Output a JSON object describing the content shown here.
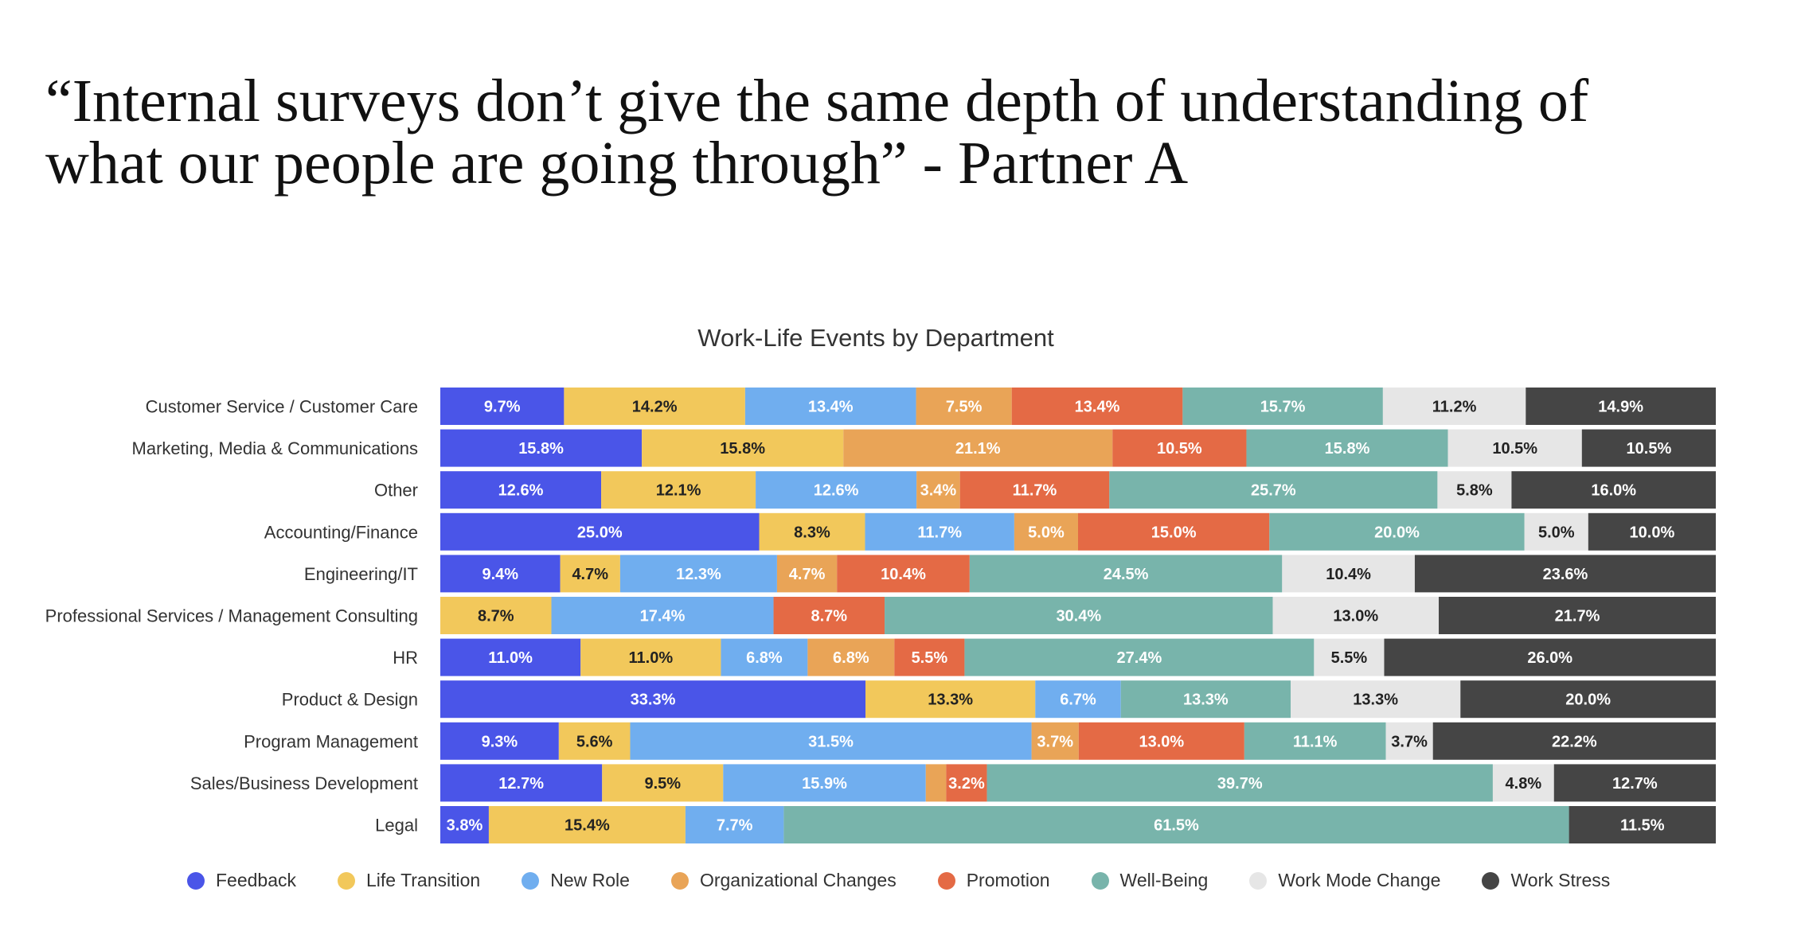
{
  "quote": {
    "line1": "“Internal surveys don’t give the same depth of understanding of",
    "line2": "what our people are going through” - Partner A"
  },
  "chart_data": {
    "type": "bar",
    "orientation": "horizontal",
    "stacked": true,
    "normalized": true,
    "title": "Work-Life Events by Department",
    "categories": [
      "Customer Service / Customer Care",
      "Marketing, Media & Communications",
      "Other",
      "Accounting/Finance",
      "Engineering/IT",
      "Professional Services / Management Consulting",
      "HR",
      "Product & Design",
      "Program Management",
      "Sales/Business Development",
      "Legal"
    ],
    "series": [
      {
        "name": "Feedback",
        "color": "#4a55e8",
        "values": [
          9.7,
          15.8,
          12.6,
          25.0,
          9.4,
          0,
          11.0,
          33.3,
          9.3,
          12.7,
          3.8
        ]
      },
      {
        "name": "Life Transition",
        "color": "#f2c85b",
        "values": [
          14.2,
          15.8,
          12.1,
          8.3,
          4.7,
          8.7,
          11.0,
          13.3,
          5.6,
          9.5,
          15.4
        ]
      },
      {
        "name": "New Role",
        "color": "#70aeef",
        "values": [
          13.4,
          0,
          12.6,
          11.7,
          12.3,
          17.4,
          6.8,
          6.7,
          31.5,
          15.9,
          7.7
        ]
      },
      {
        "name": "Organizational Changes",
        "color": "#e9a457",
        "values": [
          7.5,
          21.1,
          3.4,
          5.0,
          4.7,
          0,
          6.8,
          0,
          3.7,
          1.6,
          0
        ]
      },
      {
        "name": "Promotion",
        "color": "#e46a45",
        "values": [
          13.4,
          10.5,
          11.7,
          15.0,
          10.4,
          8.7,
          5.5,
          0,
          13.0,
          3.2,
          0
        ]
      },
      {
        "name": "Well-Being",
        "color": "#78b4ab",
        "values": [
          15.7,
          15.8,
          25.7,
          20.0,
          24.5,
          30.4,
          27.4,
          13.3,
          11.1,
          39.7,
          61.5
        ]
      },
      {
        "name": "Work Mode Change",
        "color": "#e6e6e6",
        "values": [
          11.2,
          10.5,
          5.8,
          5.0,
          10.4,
          13.0,
          5.5,
          13.3,
          3.7,
          4.8,
          0
        ]
      },
      {
        "name": "Work Stress",
        "color": "#454545",
        "values": [
          14.9,
          10.5,
          16.0,
          10.0,
          23.6,
          21.7,
          26.0,
          20.0,
          22.2,
          12.7,
          11.5
        ]
      }
    ],
    "labels": [
      [
        "9.7%",
        "14.2%",
        "13.4%",
        "7.5%",
        "13.4%",
        "15.7%",
        "11.2%",
        "14.9%"
      ],
      [
        "15.8%",
        "15.8%",
        "",
        "21.1%",
        "10.5%",
        "15.8%",
        "10.5%",
        "10.5%"
      ],
      [
        "12.6%",
        "12.1%",
        "12.6%",
        "3.4%",
        "11.7%",
        "25.7%",
        "5.8%",
        "16.0%"
      ],
      [
        "25.0%",
        "8.3%",
        "11.7%",
        "5.0%",
        "15.0%",
        "20.0%",
        "5.0%",
        "10.0%"
      ],
      [
        "9.4%",
        "4.7%",
        "12.3%",
        "4.7%",
        "10.4%",
        "24.5%",
        "10.4%",
        "23.6%"
      ],
      [
        "",
        "8.7%",
        "17.4%",
        "",
        "8.7%",
        "30.4%",
        "13.0%",
        "21.7%"
      ],
      [
        "11.0%",
        "11.0%",
        "6.8%",
        "6.8%",
        "5.5%",
        "27.4%",
        "5.5%",
        "26.0%"
      ],
      [
        "33.3%",
        "13.3%",
        "6.7%",
        "",
        "",
        "13.3%",
        "13.3%",
        "20.0%"
      ],
      [
        "9.3%",
        "5.6%",
        "31.5%",
        "3.7%",
        "13.0%",
        "11.1%",
        "3.7%",
        "22.2%"
      ],
      [
        "12.7%",
        "9.5%",
        "15.9%",
        "",
        "3.2%",
        "39.7%",
        "4.8%",
        "12.7%"
      ],
      [
        "3.8%",
        "15.4%",
        "7.7%",
        "",
        "",
        "61.5%",
        "",
        "11.5%"
      ]
    ],
    "legend_position": "bottom",
    "xlim": [
      0,
      100
    ]
  }
}
